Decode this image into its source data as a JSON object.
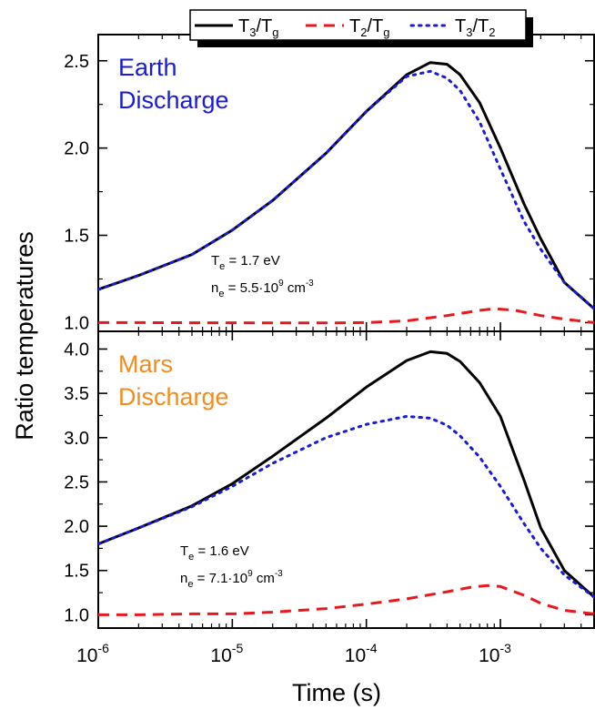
{
  "chart_data": [
    {
      "type": "line",
      "panel": "top",
      "panel_label_lines": [
        "Earth",
        "Discharge"
      ],
      "panel_label_color": "#1a1adb",
      "annotations": [
        {
          "main": "T",
          "sub": "e",
          "rest": " = 1.7 eV"
        },
        {
          "main": "n",
          "sub": "e",
          "rest": " = 5.5·10",
          "sup": "9",
          "unit": " cm",
          "unit_sup": "-3"
        }
      ],
      "x_scale": "log",
      "xlim": [
        1e-06,
        0.005
      ],
      "ylim": [
        0.95,
        2.65
      ],
      "yticks": [
        "1.0",
        "1.5",
        "2.0",
        "2.5"
      ],
      "ytick_values": [
        1.0,
        1.5,
        2.0,
        2.5
      ],
      "series": [
        {
          "name_parts": {
            "a": "T",
            "a_sub": "3",
            "b": "T",
            "b_sub": "g"
          },
          "style": "solid",
          "color": "#000000",
          "x": [
            1e-06,
            2e-06,
            5e-06,
            1e-05,
            2e-05,
            5e-05,
            0.0001,
            0.0002,
            0.0003,
            0.0004,
            0.0005,
            0.0007,
            0.001,
            0.0015,
            0.002,
            0.003,
            0.005
          ],
          "y": [
            1.19,
            1.27,
            1.39,
            1.53,
            1.7,
            1.97,
            2.21,
            2.42,
            2.49,
            2.48,
            2.42,
            2.26,
            2.0,
            1.68,
            1.48,
            1.23,
            1.08
          ]
        },
        {
          "name_parts": {
            "a": "T",
            "a_sub": "2",
            "b": "T",
            "b_sub": "g"
          },
          "style": "dashed",
          "color": "#e8181c",
          "x": [
            1e-06,
            2e-06,
            5e-06,
            1e-05,
            2e-05,
            5e-05,
            0.0001,
            0.0002,
            0.0004,
            0.0007,
            0.0009,
            0.0013,
            0.002,
            0.003,
            0.005
          ],
          "y": [
            1.0,
            1.0,
            0.999,
            0.999,
            0.998,
            0.998,
            1.0,
            1.01,
            1.04,
            1.07,
            1.08,
            1.07,
            1.04,
            1.02,
            1.0
          ]
        },
        {
          "name_parts": {
            "a": "T",
            "a_sub": "3",
            "b": "T",
            "b_sub": "2"
          },
          "style": "dotted",
          "color": "#1a1adb",
          "x": [
            1e-06,
            2e-06,
            5e-06,
            1e-05,
            2e-05,
            5e-05,
            0.0001,
            0.0002,
            0.0003,
            0.0004,
            0.0005,
            0.0007,
            0.001,
            0.0015,
            0.002,
            0.003,
            0.005
          ],
          "y": [
            1.19,
            1.27,
            1.39,
            1.53,
            1.7,
            1.97,
            2.21,
            2.41,
            2.44,
            2.4,
            2.33,
            2.15,
            1.88,
            1.58,
            1.42,
            1.23,
            1.08
          ]
        }
      ]
    },
    {
      "type": "line",
      "panel": "bottom",
      "panel_label_lines": [
        "Mars",
        "Discharge"
      ],
      "panel_label_color": "#f28c1e",
      "annotations": [
        {
          "main": "T",
          "sub": "e",
          "rest": " = 1.6 eV"
        },
        {
          "main": "n",
          "sub": "e",
          "rest": " = 7.1·10",
          "sup": "9",
          "unit": " cm",
          "unit_sup": "-3"
        }
      ],
      "x_scale": "log",
      "xlim": [
        1e-06,
        0.005
      ],
      "ylim": [
        0.85,
        4.2
      ],
      "yticks": [
        "1.0",
        "1.5",
        "2.0",
        "2.5",
        "3.0",
        "3.5",
        "4.0"
      ],
      "ytick_values": [
        1.0,
        1.5,
        2.0,
        2.5,
        3.0,
        3.5,
        4.0
      ],
      "series": [
        {
          "name_parts": {
            "a": "T",
            "a_sub": "3",
            "b": "T",
            "b_sub": "g"
          },
          "style": "solid",
          "color": "#000000",
          "x": [
            1e-06,
            2e-06,
            5e-06,
            1e-05,
            2e-05,
            5e-05,
            0.0001,
            0.0002,
            0.0003,
            0.0004,
            0.0005,
            0.0007,
            0.001,
            0.0015,
            0.002,
            0.003,
            0.005
          ],
          "y": [
            1.8,
            1.98,
            2.23,
            2.48,
            2.79,
            3.22,
            3.57,
            3.87,
            3.97,
            3.95,
            3.86,
            3.62,
            3.24,
            2.52,
            1.98,
            1.5,
            1.2
          ]
        },
        {
          "name_parts": {
            "a": "T",
            "a_sub": "2",
            "b": "T",
            "b_sub": "g"
          },
          "style": "dashed",
          "color": "#e8181c",
          "x": [
            1e-06,
            2e-06,
            5e-06,
            1e-05,
            2e-05,
            5e-05,
            0.0001,
            0.0002,
            0.0004,
            0.0006,
            0.0008,
            0.001,
            0.0015,
            0.002,
            0.003,
            0.005
          ],
          "y": [
            1.0,
            1.0,
            1.01,
            1.01,
            1.03,
            1.07,
            1.12,
            1.18,
            1.26,
            1.31,
            1.33,
            1.32,
            1.22,
            1.13,
            1.05,
            1.01
          ]
        },
        {
          "name_parts": {
            "a": "T",
            "a_sub": "3",
            "b": "T",
            "b_sub": "2"
          },
          "style": "dotted",
          "color": "#1a1adb",
          "x": [
            1e-06,
            2e-06,
            5e-06,
            1e-05,
            2e-05,
            5e-05,
            0.0001,
            0.0002,
            0.0003,
            0.0004,
            0.0005,
            0.0007,
            0.001,
            0.0015,
            0.002,
            0.003,
            0.005
          ],
          "y": [
            1.8,
            1.98,
            2.22,
            2.45,
            2.71,
            3.0,
            3.15,
            3.24,
            3.22,
            3.14,
            3.02,
            2.78,
            2.45,
            2.03,
            1.75,
            1.45,
            1.2
          ]
        }
      ]
    }
  ],
  "shared_axes": {
    "xlabel": "Time (s)",
    "ylabel": "Ratio temperatures",
    "xticks": [
      {
        "value": 1e-06,
        "base": "10",
        "exp": "-6"
      },
      {
        "value": 1e-05,
        "base": "10",
        "exp": "-5"
      },
      {
        "value": 0.0001,
        "base": "10",
        "exp": "-4"
      },
      {
        "value": 0.001,
        "base": "10",
        "exp": "-3"
      }
    ]
  },
  "legend": {
    "placement": "top-center",
    "entries": [
      {
        "style": "solid",
        "color": "#000000",
        "a": "T",
        "a_sub": "3",
        "b": "T",
        "b_sub": "g"
      },
      {
        "style": "dashed",
        "color": "#e8181c",
        "a": "T",
        "a_sub": "2",
        "b": "T",
        "b_sub": "g"
      },
      {
        "style": "dotted",
        "color": "#1a1adb",
        "a": "T",
        "a_sub": "3",
        "b": "T",
        "b_sub": "2"
      }
    ]
  }
}
